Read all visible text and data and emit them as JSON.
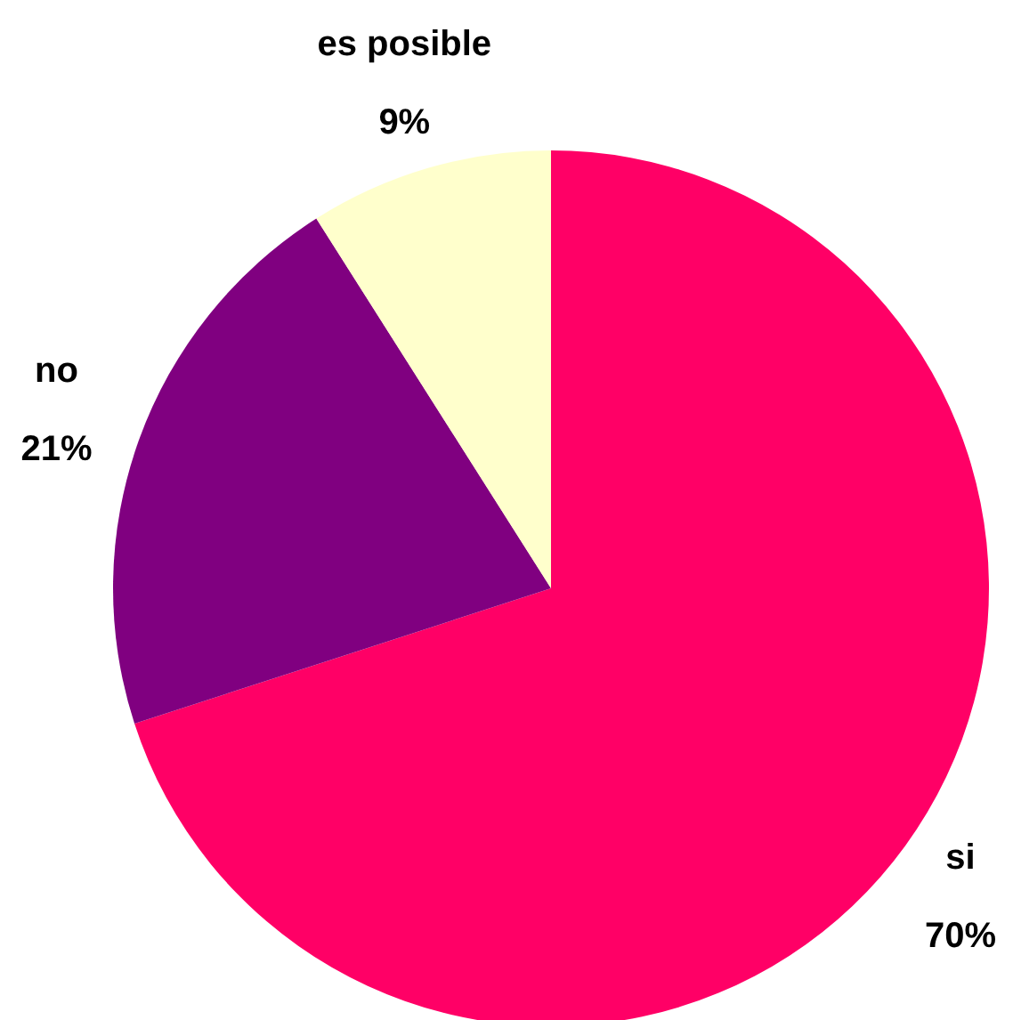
{
  "chart_data": {
    "type": "pie",
    "categories": [
      "si",
      "no",
      "es posible"
    ],
    "values": [
      70,
      21,
      9
    ],
    "colors": [
      "#ff0066",
      "#800080",
      "#ffffcc"
    ],
    "value_labels": [
      "70%",
      "21%",
      "9%"
    ]
  }
}
